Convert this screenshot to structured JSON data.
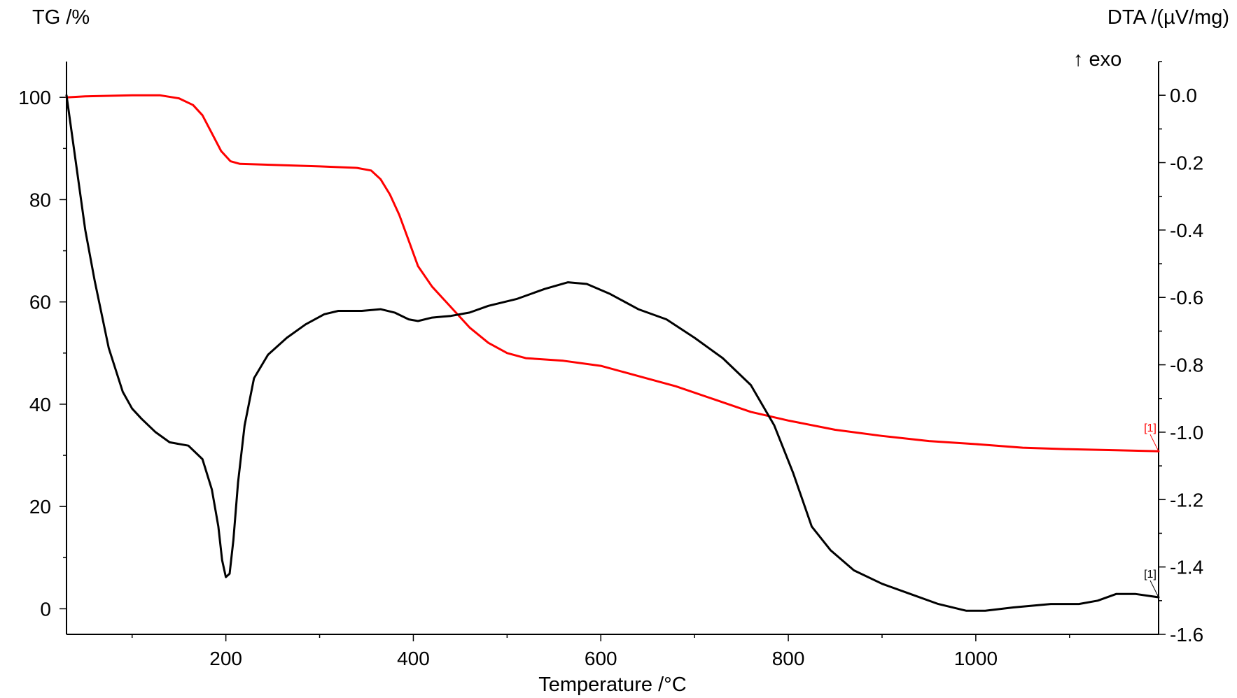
{
  "chart_data": {
    "type": "line",
    "ylabel_left": "TG /%",
    "ylabel_right": "DTA /(µV/mg)",
    "xlabel": "Temperature /°C",
    "annotation": "↑ exo",
    "xlim": [
      30,
      1195
    ],
    "ylim_left": [
      -5,
      107
    ],
    "ylim_right": [
      -1.6,
      0.1
    ],
    "x_ticks": [
      200,
      400,
      600,
      800,
      1000
    ],
    "x_tick_labels": [
      "200",
      "400",
      "600",
      "800",
      "1000"
    ],
    "y_left_ticks": [
      0,
      20,
      40,
      60,
      80,
      100
    ],
    "y_left_tick_labels": [
      "0",
      "20",
      "40",
      "60",
      "80",
      "100"
    ],
    "y_right_ticks": [
      0.0,
      -0.2,
      -0.4,
      -0.6,
      -0.8,
      -1.0,
      -1.2,
      -1.4,
      -1.6
    ],
    "y_right_tick_labels": [
      "0.0",
      "-0.2",
      "-0.4",
      "-0.6",
      "-0.8",
      "-1.0",
      "-1.2",
      "-1.4",
      "-1.6"
    ],
    "series": [
      {
        "axis": "left",
        "color": "#ff0000",
        "end_label": "[1]",
        "points": [
          [
            30,
            100
          ],
          [
            50,
            100.2
          ],
          [
            100,
            100.4
          ],
          [
            130,
            100.4
          ],
          [
            150,
            99.8
          ],
          [
            165,
            98.5
          ],
          [
            175,
            96.5
          ],
          [
            185,
            93
          ],
          [
            195,
            89.5
          ],
          [
            205,
            87.5
          ],
          [
            215,
            87
          ],
          [
            250,
            86.8
          ],
          [
            300,
            86.5
          ],
          [
            340,
            86.2
          ],
          [
            355,
            85.7
          ],
          [
            365,
            84
          ],
          [
            375,
            81
          ],
          [
            385,
            77
          ],
          [
            395,
            72
          ],
          [
            405,
            67
          ],
          [
            420,
            63
          ],
          [
            440,
            59
          ],
          [
            460,
            55
          ],
          [
            480,
            52
          ],
          [
            500,
            50
          ],
          [
            520,
            49
          ],
          [
            560,
            48.5
          ],
          [
            600,
            47.5
          ],
          [
            640,
            45.5
          ],
          [
            680,
            43.5
          ],
          [
            720,
            41
          ],
          [
            760,
            38.5
          ],
          [
            800,
            36.8
          ],
          [
            850,
            35
          ],
          [
            900,
            33.8
          ],
          [
            950,
            32.8
          ],
          [
            1000,
            32.2
          ],
          [
            1050,
            31.5
          ],
          [
            1100,
            31.2
          ],
          [
            1150,
            31
          ],
          [
            1195,
            30.8
          ]
        ]
      },
      {
        "axis": "right",
        "color": "#000000",
        "end_label": "[1]",
        "points": [
          [
            30,
            0.0
          ],
          [
            40,
            -0.2
          ],
          [
            50,
            -0.4
          ],
          [
            60,
            -0.55
          ],
          [
            75,
            -0.75
          ],
          [
            90,
            -0.88
          ],
          [
            100,
            -0.93
          ],
          [
            110,
            -0.96
          ],
          [
            125,
            -1.0
          ],
          [
            140,
            -1.03
          ],
          [
            160,
            -1.04
          ],
          [
            175,
            -1.08
          ],
          [
            185,
            -1.17
          ],
          [
            192,
            -1.28
          ],
          [
            196,
            -1.38
          ],
          [
            200,
            -1.43
          ],
          [
            204,
            -1.42
          ],
          [
            208,
            -1.32
          ],
          [
            213,
            -1.15
          ],
          [
            220,
            -0.98
          ],
          [
            230,
            -0.84
          ],
          [
            245,
            -0.77
          ],
          [
            265,
            -0.72
          ],
          [
            285,
            -0.68
          ],
          [
            305,
            -0.65
          ],
          [
            320,
            -0.64
          ],
          [
            345,
            -0.64
          ],
          [
            365,
            -0.635
          ],
          [
            380,
            -0.645
          ],
          [
            395,
            -0.665
          ],
          [
            405,
            -0.67
          ],
          [
            420,
            -0.66
          ],
          [
            440,
            -0.655
          ],
          [
            460,
            -0.645
          ],
          [
            480,
            -0.625
          ],
          [
            510,
            -0.605
          ],
          [
            540,
            -0.575
          ],
          [
            565,
            -0.555
          ],
          [
            585,
            -0.56
          ],
          [
            610,
            -0.59
          ],
          [
            640,
            -0.635
          ],
          [
            670,
            -0.665
          ],
          [
            700,
            -0.72
          ],
          [
            730,
            -0.78
          ],
          [
            760,
            -0.86
          ],
          [
            785,
            -0.98
          ],
          [
            805,
            -1.12
          ],
          [
            825,
            -1.28
          ],
          [
            845,
            -1.35
          ],
          [
            870,
            -1.41
          ],
          [
            900,
            -1.45
          ],
          [
            930,
            -1.48
          ],
          [
            960,
            -1.51
          ],
          [
            990,
            -1.53
          ],
          [
            1010,
            -1.53
          ],
          [
            1040,
            -1.52
          ],
          [
            1080,
            -1.51
          ],
          [
            1110,
            -1.51
          ],
          [
            1130,
            -1.5
          ],
          [
            1150,
            -1.48
          ],
          [
            1170,
            -1.48
          ],
          [
            1195,
            -1.49
          ]
        ]
      }
    ]
  }
}
